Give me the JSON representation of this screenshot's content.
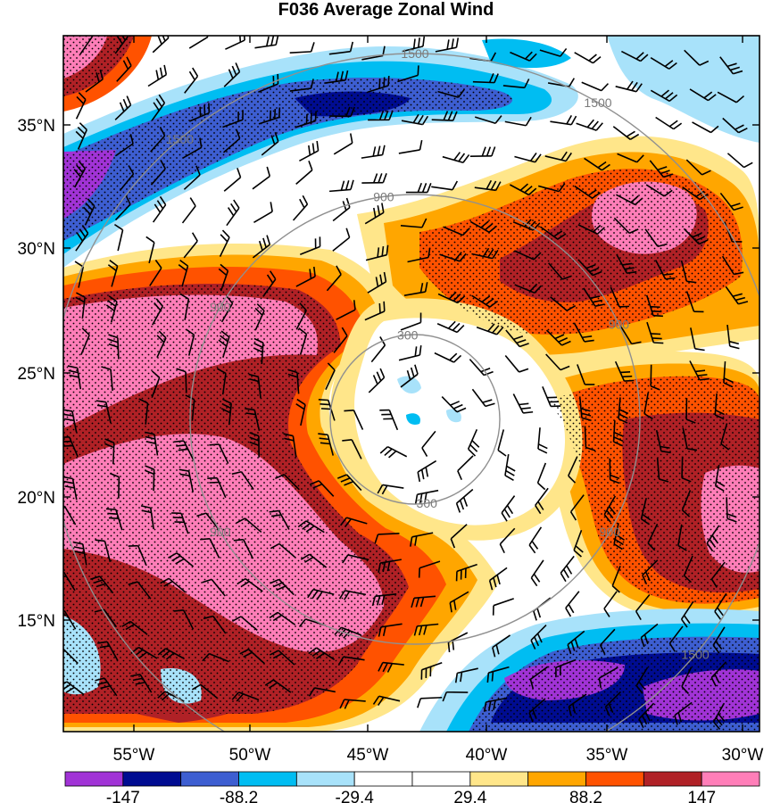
{
  "title": "F036 Average Zonal Wind",
  "map": {
    "lon_ticks": [
      "55°W",
      "50°W",
      "45°W",
      "40°W",
      "35°W",
      "30°W"
    ],
    "lat_ticks": [
      "35°N",
      "30°N",
      "25°N",
      "20°N",
      "15°N"
    ],
    "range_rings": [
      "300",
      "900",
      "1500"
    ],
    "ring_label_instances": [
      {
        "ring": 0,
        "text": "300"
      },
      {
        "ring": 0,
        "text": "300"
      },
      {
        "ring": 1,
        "text": "900"
      },
      {
        "ring": 1,
        "text": "900"
      },
      {
        "ring": 1,
        "text": "900"
      },
      {
        "ring": 1,
        "text": "900"
      },
      {
        "ring": 1,
        "text": "900"
      },
      {
        "ring": 2,
        "text": "1500"
      },
      {
        "ring": 2,
        "text": "1500"
      },
      {
        "ring": 2,
        "text": "1500"
      },
      {
        "ring": 2,
        "text": "1500"
      },
      {
        "ring": 2,
        "text": "1500"
      },
      {
        "ring": 2,
        "text": "1500"
      }
    ]
  },
  "colorbar": {
    "labels": [
      "-147",
      "-88.2",
      "-29.4",
      "29.4",
      "88.2",
      "147"
    ],
    "colors": [
      "#a133d6",
      "#000c91",
      "#3d5ed1",
      "#00bdf2",
      "#a8e2fa",
      "#ffffff",
      "#ffffff",
      "#ffe68a",
      "#ffa600",
      "#ff5200",
      "#b02126",
      "#ff7eb8"
    ]
  },
  "colors": {
    "pink": "#ff7eb8",
    "maroon": "#b02126",
    "orange_red": "#ff5200",
    "orange": "#ffa600",
    "yellow": "#ffe68a",
    "light_blue": "#a8e2fa",
    "cyan": "#00bdf2",
    "blue": "#3d5ed1",
    "navy": "#000c91",
    "purple": "#a133d6",
    "ring": "#909090"
  }
}
